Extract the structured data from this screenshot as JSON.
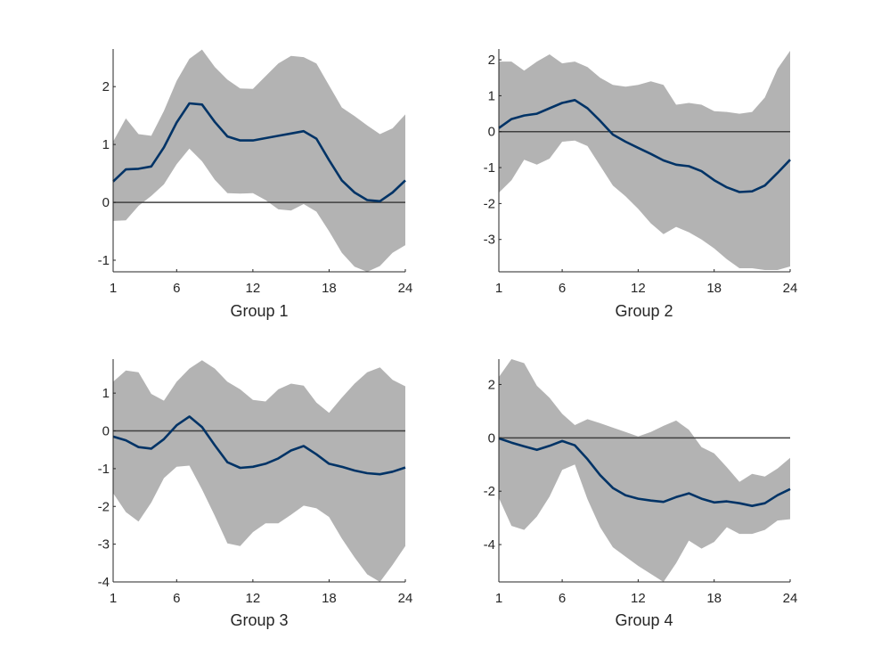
{
  "colors": {
    "band": "#b3b3b3",
    "line": "#003366",
    "zero": "#404040",
    "axis": "#262626"
  },
  "chart_data": [
    {
      "type": "line",
      "title": "Group 1",
      "x": [
        1,
        2,
        3,
        4,
        5,
        6,
        7,
        8,
        9,
        10,
        11,
        12,
        13,
        14,
        15,
        16,
        17,
        18,
        19,
        20,
        21,
        22,
        23,
        24
      ],
      "xticks": [
        1,
        6,
        12,
        18,
        24
      ],
      "yticks": [
        -1,
        0,
        1,
        2
      ],
      "xlim": [
        1,
        24
      ],
      "ylim": [
        -1.2,
        2.65
      ],
      "series": [
        {
          "values": [
            0.36,
            0.57,
            0.58,
            0.62,
            0.95,
            1.38,
            1.71,
            1.69,
            1.39,
            1.14,
            1.07,
            1.07,
            1.11,
            1.15,
            1.19,
            1.23,
            1.1,
            0.73,
            0.38,
            0.17,
            0.04,
            0.02,
            0.17,
            0.38
          ]
        }
      ],
      "band": {
        "upper": [
          1.05,
          1.45,
          1.18,
          1.15,
          1.58,
          2.1,
          2.48,
          2.64,
          2.34,
          2.12,
          1.97,
          1.96,
          2.18,
          2.4,
          2.53,
          2.51,
          2.4,
          2.02,
          1.64,
          1.49,
          1.33,
          1.18,
          1.28,
          1.52
        ],
        "lower": [
          -0.32,
          -0.31,
          -0.06,
          0.11,
          0.31,
          0.66,
          0.93,
          0.71,
          0.39,
          0.16,
          0.15,
          0.16,
          0.04,
          -0.12,
          -0.14,
          -0.03,
          -0.16,
          -0.5,
          -0.87,
          -1.11,
          -1.2,
          -1.1,
          -0.87,
          -0.74
        ]
      }
    },
    {
      "type": "line",
      "title": "Group 2",
      "x": [
        1,
        2,
        3,
        4,
        5,
        6,
        7,
        8,
        9,
        10,
        11,
        12,
        13,
        14,
        15,
        16,
        17,
        18,
        19,
        20,
        21,
        22,
        23,
        24
      ],
      "xticks": [
        1,
        6,
        12,
        18,
        24
      ],
      "yticks": [
        -3,
        -2,
        -1,
        0,
        1,
        2
      ],
      "xlim": [
        1,
        24
      ],
      "ylim": [
        -3.9,
        2.3
      ],
      "series": [
        {
          "values": [
            0.1,
            0.35,
            0.45,
            0.5,
            0.65,
            0.8,
            0.88,
            0.65,
            0.3,
            -0.08,
            -0.28,
            -0.45,
            -0.62,
            -0.8,
            -0.92,
            -0.96,
            -1.1,
            -1.35,
            -1.55,
            -1.68,
            -1.66,
            -1.5,
            -1.15,
            -0.78
          ]
        }
      ],
      "band": {
        "upper": [
          1.95,
          1.95,
          1.7,
          1.95,
          2.15,
          1.9,
          1.95,
          1.8,
          1.5,
          1.3,
          1.25,
          1.3,
          1.4,
          1.3,
          0.75,
          0.8,
          0.75,
          0.57,
          0.55,
          0.5,
          0.55,
          0.95,
          1.75,
          2.25
        ],
        "lower": [
          -1.7,
          -1.35,
          -0.78,
          -0.92,
          -0.75,
          -0.28,
          -0.25,
          -0.4,
          -0.95,
          -1.5,
          -1.8,
          -2.15,
          -2.55,
          -2.85,
          -2.65,
          -2.8,
          -3.0,
          -3.25,
          -3.55,
          -3.8,
          -3.8,
          -3.85,
          -3.85,
          -3.75
        ]
      }
    },
    {
      "type": "line",
      "title": "Group 3",
      "x": [
        1,
        2,
        3,
        4,
        5,
        6,
        7,
        8,
        9,
        10,
        11,
        12,
        13,
        14,
        15,
        16,
        17,
        18,
        19,
        20,
        21,
        22,
        23,
        24
      ],
      "xticks": [
        1,
        6,
        12,
        18,
        24
      ],
      "yticks": [
        -4,
        -3,
        -2,
        -1,
        0,
        1
      ],
      "xlim": [
        1,
        24
      ],
      "ylim": [
        -4.0,
        1.9
      ],
      "series": [
        {
          "values": [
            -0.15,
            -0.25,
            -0.43,
            -0.47,
            -0.22,
            0.15,
            0.38,
            0.1,
            -0.38,
            -0.83,
            -0.98,
            -0.95,
            -0.87,
            -0.73,
            -0.52,
            -0.4,
            -0.62,
            -0.87,
            -0.95,
            -1.05,
            -1.12,
            -1.15,
            -1.08,
            -0.97
          ]
        }
      ],
      "band": {
        "upper": [
          1.3,
          1.6,
          1.55,
          0.98,
          0.8,
          1.3,
          1.65,
          1.87,
          1.65,
          1.3,
          1.1,
          0.82,
          0.78,
          1.1,
          1.25,
          1.2,
          0.75,
          0.48,
          0.88,
          1.25,
          1.55,
          1.68,
          1.35,
          1.18
        ],
        "lower": [
          -1.65,
          -2.15,
          -2.4,
          -1.9,
          -1.25,
          -0.95,
          -0.92,
          -1.55,
          -2.25,
          -2.98,
          -3.05,
          -2.68,
          -2.45,
          -2.45,
          -2.22,
          -1.98,
          -2.05,
          -2.28,
          -2.85,
          -3.35,
          -3.8,
          -4.0,
          -3.55,
          -3.05
        ]
      }
    },
    {
      "type": "line",
      "title": "Group 4",
      "x": [
        1,
        2,
        3,
        4,
        5,
        6,
        7,
        8,
        9,
        10,
        11,
        12,
        13,
        14,
        15,
        16,
        17,
        18,
        19,
        20,
        21,
        22,
        23,
        24
      ],
      "xticks": [
        1,
        6,
        12,
        18,
        24
      ],
      "yticks": [
        -4,
        -2,
        0,
        2
      ],
      "xlim": [
        1,
        24
      ],
      "ylim": [
        -5.4,
        2.95
      ],
      "series": [
        {
          "values": [
            -0.02,
            -0.18,
            -0.32,
            -0.45,
            -0.3,
            -0.12,
            -0.28,
            -0.8,
            -1.4,
            -1.88,
            -2.15,
            -2.28,
            -2.35,
            -2.4,
            -2.22,
            -2.08,
            -2.28,
            -2.42,
            -2.38,
            -2.45,
            -2.55,
            -2.45,
            -2.15,
            -1.92
          ]
        }
      ],
      "band": {
        "upper": [
          2.28,
          2.95,
          2.8,
          1.95,
          1.5,
          0.9,
          0.48,
          0.7,
          0.55,
          0.38,
          0.22,
          0.05,
          0.22,
          0.45,
          0.65,
          0.3,
          -0.35,
          -0.58,
          -1.1,
          -1.65,
          -1.35,
          -1.45,
          -1.15,
          -0.75
        ],
        "lower": [
          -2.25,
          -3.3,
          -3.45,
          -2.95,
          -2.2,
          -1.2,
          -1.0,
          -2.3,
          -3.35,
          -4.1,
          -4.45,
          -4.8,
          -5.1,
          -5.4,
          -4.7,
          -3.85,
          -4.15,
          -3.9,
          -3.35,
          -3.6,
          -3.6,
          -3.45,
          -3.1,
          -3.05
        ]
      }
    }
  ]
}
